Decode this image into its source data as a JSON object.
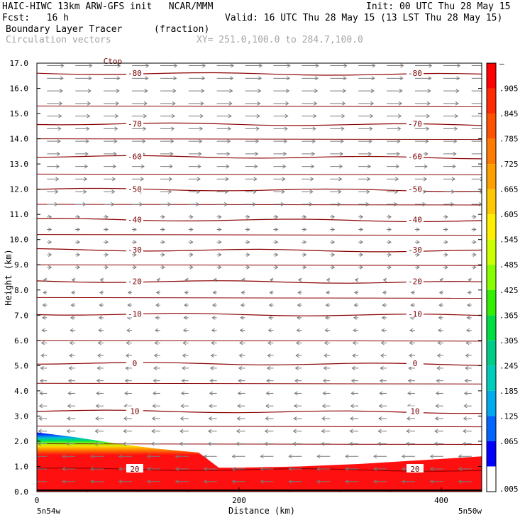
{
  "header": {
    "model_line": "HAIC-HIWC 13km ARW-GFS init   NCAR/MMM",
    "init_line": "Init: 00 UTC Thu 28 May 15",
    "fcst_label": "Fcst:   16 h",
    "valid_line": "Valid: 16 UTC Thu 28 May 15 (13 LST Thu 28 May 15)",
    "field_name": "Boundary Layer Tracer",
    "field_units": "(fraction)",
    "vectors_label": "Circulation vectors",
    "xsec_label": "XY= 251.0,100.0 to 284.7,100.0"
  },
  "colors": {
    "contour": "#8b0000",
    "vector": "#7a7a7a",
    "tracer_high": "#ff1a1a",
    "tracer_low": "#0000ff"
  },
  "chart_data": {
    "type": "heatmap",
    "xlabel": "Distance (km)",
    "ylabel": "Height (km)",
    "xlim": [
      0,
      440
    ],
    "ylim": [
      0.0,
      17.0
    ],
    "x_ticks": [
      0,
      200,
      400
    ],
    "x_tick_labels": [
      "0",
      "200",
      "400"
    ],
    "x_end_labels": [
      "5n54w",
      "5n50w"
    ],
    "y_ticks": [
      0.0,
      1.0,
      2.0,
      3.0,
      4.0,
      5.0,
      6.0,
      7.0,
      8.0,
      9.0,
      10.0,
      11.0,
      12.0,
      13.0,
      14.0,
      15.0,
      16.0,
      17.0
    ],
    "y_tick_labels": [
      "0.0",
      "1.0",
      "2.0",
      "3.0",
      "4.0",
      "5.0",
      "6.0",
      "7.0",
      "8.0",
      "9.0",
      "10.0",
      "11.0",
      "12.0",
      "13.0",
      "14.0",
      "15.0",
      "16.0",
      "17.0"
    ],
    "colorbar": {
      "labels": [
        "–",
        ".905",
        ".845",
        ".785",
        ".725",
        ".665",
        ".605",
        ".545",
        ".485",
        ".425",
        ".365",
        ".305",
        ".245",
        ".185",
        ".125",
        ".065",
        ".005"
      ],
      "colors": [
        "#ff0000",
        "#ff2a00",
        "#ff5200",
        "#ff7a00",
        "#ffa000",
        "#ffc800",
        "#ffee00",
        "#ccff00",
        "#88ff00",
        "#33ee00",
        "#00dd44",
        "#00cc88",
        "#00ccbb",
        "#00aaee",
        "#0066ff",
        "#0000ff",
        "#ffffff"
      ]
    },
    "tracer_top_km": {
      "x": [
        0,
        40,
        80,
        120,
        160,
        180,
        200,
        260,
        320,
        380,
        440
      ],
      "top": [
        2.35,
        2.15,
        1.9,
        1.7,
        1.55,
        0.95,
        0.95,
        1.0,
        1.1,
        1.25,
        1.4
      ]
    },
    "contours": [
      {
        "label": "-80",
        "height_km": 16.6
      },
      {
        "label": "-70",
        "height_km": 14.6
      },
      {
        "label": "-60",
        "height_km": 13.3
      },
      {
        "label": "-50",
        "height_km": 12.0
      },
      {
        "label": "-40",
        "height_km": 10.8
      },
      {
        "label": "-30",
        "height_km": 9.6
      },
      {
        "label": "-20",
        "height_km": 8.35
      },
      {
        "label": "-10",
        "height_km": 7.05
      },
      {
        "label": "0",
        "height_km": 5.1
      },
      {
        "label": "10",
        "height_km": 3.2
      },
      {
        "label": "20",
        "height_km": 0.9
      }
    ],
    "contour_text_ctop": "Ctop"
  }
}
